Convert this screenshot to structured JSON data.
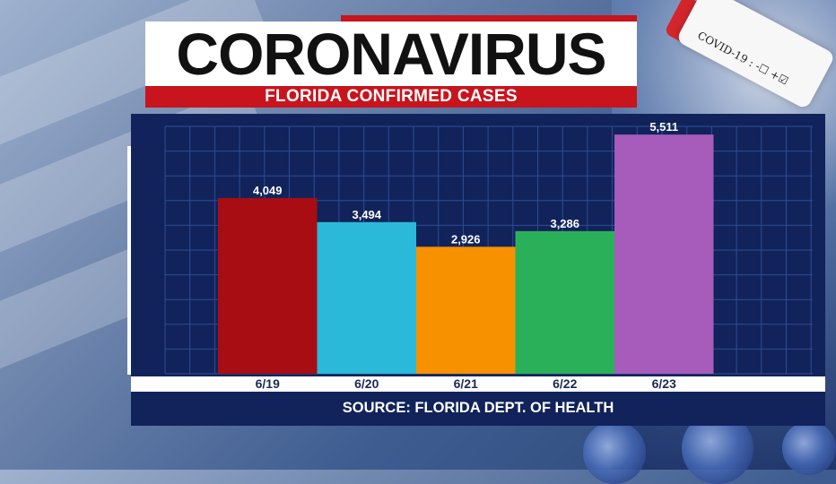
{
  "header": {
    "title": "CORONAVIRUS",
    "subtitle": "FLORIDA CONFIRMED CASES"
  },
  "vial_label": "COVID-19 : -☐ +☑",
  "source": "SOURCE: FLORIDA DEPT. OF HEALTH",
  "colors": {
    "panel": "#11235a",
    "grid": "#2f4c96",
    "title_accent": "#c8141d"
  },
  "chart_data": {
    "type": "bar",
    "categories": [
      "6/19",
      "6/20",
      "6/21",
      "6/22",
      "6/23"
    ],
    "values": [
      4049,
      3494,
      2926,
      3286,
      5511
    ],
    "value_labels": [
      "4,049",
      "3,494",
      "2,926",
      "3,286",
      "5,511"
    ],
    "bar_colors": [
      "#a80d14",
      "#2bb9d9",
      "#f79100",
      "#2bb05a",
      "#a75bbb"
    ],
    "title": "FLORIDA CONFIRMED CASES",
    "xlabel": "",
    "ylabel": "",
    "ylim": [
      0,
      5700
    ],
    "grid": true,
    "legend": "none"
  }
}
